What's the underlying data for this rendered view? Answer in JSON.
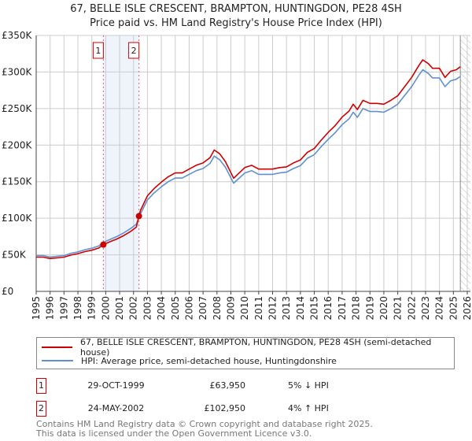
{
  "title": "67, BELLE ISLE CRESCENT, BRAMPTON, HUNTINGDON, PE28 4SH",
  "subtitle": "Price paid vs. HM Land Registry's House Price Index (HPI)",
  "colors": {
    "property": "#cc0000",
    "hpi": "#6090d0",
    "band": "#eef3fc",
    "grid": "#cccccc"
  },
  "chart_data": {
    "type": "line",
    "title": "67, BELLE ISLE CRESCENT, BRAMPTON, HUNTINGDON, PE28 4SH",
    "xlim": [
      1995,
      2026
    ],
    "ylim": [
      0,
      350000
    ],
    "x_ticks": [
      "1995",
      "1996",
      "1997",
      "1998",
      "1999",
      "2000",
      "2001",
      "2002",
      "2003",
      "2004",
      "2005",
      "2006",
      "2007",
      "2008",
      "2009",
      "2010",
      "2011",
      "2012",
      "2013",
      "2014",
      "2015",
      "2016",
      "2017",
      "2018",
      "2019",
      "2020",
      "2021",
      "2022",
      "2023",
      "2024",
      "2025",
      "2026"
    ],
    "y_ticks": [
      {
        "v": 0,
        "label": "£0"
      },
      {
        "v": 50000,
        "label": "£50K"
      },
      {
        "v": 100000,
        "label": "£100K"
      },
      {
        "v": 150000,
        "label": "£150K"
      },
      {
        "v": 200000,
        "label": "£200K"
      },
      {
        "v": 250000,
        "label": "£250K"
      },
      {
        "v": 300000,
        "label": "£300K"
      },
      {
        "v": 350000,
        "label": "£350K"
      }
    ],
    "grid": true,
    "forecast_start": 2025.5,
    "series": [
      {
        "name": "67, BELLE ISLE CRESCENT, BRAMPTON, HUNTINGDON, PE28 4SH (semi-detached house)",
        "color": "#cc0000",
        "points": [
          [
            1995,
            46800
          ],
          [
            1995.5,
            46800
          ],
          [
            1996,
            44900
          ],
          [
            1996.5,
            45800
          ],
          [
            1997,
            46800
          ],
          [
            1997.5,
            49700
          ],
          [
            1998,
            51600
          ],
          [
            1998.5,
            54400
          ],
          [
            1999,
            56300
          ],
          [
            1999.5,
            59200
          ],
          [
            1999.83,
            63950
          ],
          [
            2000.3,
            67800
          ],
          [
            2000.8,
            71600
          ],
          [
            2001.3,
            76400
          ],
          [
            2001.8,
            82100
          ],
          [
            2002.2,
            87900
          ],
          [
            2002.39,
            102950
          ],
          [
            2002.5,
            110800
          ],
          [
            2003,
            130600
          ],
          [
            2003.5,
            141100
          ],
          [
            2004,
            149400
          ],
          [
            2004.5,
            156800
          ],
          [
            2005,
            162000
          ],
          [
            2005.5,
            162000
          ],
          [
            2006,
            167200
          ],
          [
            2006.5,
            172400
          ],
          [
            2007,
            175600
          ],
          [
            2007.5,
            182900
          ],
          [
            2007.8,
            193300
          ],
          [
            2008.2,
            188100
          ],
          [
            2008.6,
            177700
          ],
          [
            2009.2,
            154700
          ],
          [
            2009.6,
            162000
          ],
          [
            2010,
            169300
          ],
          [
            2010.5,
            172400
          ],
          [
            2011,
            167200
          ],
          [
            2011.5,
            167200
          ],
          [
            2012,
            167200
          ],
          [
            2012.5,
            169300
          ],
          [
            2013,
            170300
          ],
          [
            2013.5,
            175600
          ],
          [
            2014,
            179700
          ],
          [
            2014.5,
            190200
          ],
          [
            2015,
            195400
          ],
          [
            2015.5,
            206900
          ],
          [
            2016,
            217400
          ],
          [
            2016.5,
            226800
          ],
          [
            2017,
            238300
          ],
          [
            2017.5,
            246600
          ],
          [
            2017.8,
            256000
          ],
          [
            2018.1,
            248700
          ],
          [
            2018.5,
            261300
          ],
          [
            2019,
            257100
          ],
          [
            2019.5,
            257100
          ],
          [
            2020,
            256000
          ],
          [
            2020.5,
            261300
          ],
          [
            2021,
            267500
          ],
          [
            2021.5,
            280100
          ],
          [
            2022,
            292600
          ],
          [
            2022.5,
            308300
          ],
          [
            2022.8,
            316600
          ],
          [
            2023.2,
            311400
          ],
          [
            2023.5,
            305100
          ],
          [
            2024,
            305100
          ],
          [
            2024.4,
            292600
          ],
          [
            2024.8,
            301000
          ],
          [
            2025.2,
            303100
          ],
          [
            2025.5,
            307200
          ]
        ]
      },
      {
        "name": "HPI: Average price, semi-detached house, Huntingdonshire",
        "color": "#6090d0",
        "points": [
          [
            1995,
            49000
          ],
          [
            1995.5,
            49000
          ],
          [
            1996,
            47000
          ],
          [
            1996.5,
            48000
          ],
          [
            1997,
            49000
          ],
          [
            1997.5,
            52000
          ],
          [
            1998,
            54000
          ],
          [
            1998.5,
            57000
          ],
          [
            1999,
            59000
          ],
          [
            1999.5,
            62000
          ],
          [
            1999.83,
            67000
          ],
          [
            2000.3,
            71000
          ],
          [
            2000.8,
            75000
          ],
          [
            2001.3,
            80000
          ],
          [
            2001.8,
            86000
          ],
          [
            2002.2,
            92000
          ],
          [
            2002.5,
            106000
          ],
          [
            2003,
            125000
          ],
          [
            2003.5,
            135000
          ],
          [
            2004,
            143000
          ],
          [
            2004.5,
            150000
          ],
          [
            2005,
            155000
          ],
          [
            2005.5,
            155000
          ],
          [
            2006,
            160000
          ],
          [
            2006.5,
            165000
          ],
          [
            2007,
            168000
          ],
          [
            2007.5,
            175000
          ],
          [
            2007.8,
            185000
          ],
          [
            2008.2,
            180000
          ],
          [
            2008.6,
            170000
          ],
          [
            2009.2,
            148000
          ],
          [
            2009.6,
            155000
          ],
          [
            2010,
            162000
          ],
          [
            2010.5,
            165000
          ],
          [
            2011,
            160000
          ],
          [
            2011.5,
            160000
          ],
          [
            2012,
            160000
          ],
          [
            2012.5,
            162000
          ],
          [
            2013,
            163000
          ],
          [
            2013.5,
            168000
          ],
          [
            2014,
            172000
          ],
          [
            2014.5,
            182000
          ],
          [
            2015,
            187000
          ],
          [
            2015.5,
            198000
          ],
          [
            2016,
            208000
          ],
          [
            2016.5,
            217000
          ],
          [
            2017,
            228000
          ],
          [
            2017.5,
            236000
          ],
          [
            2017.8,
            245000
          ],
          [
            2018.1,
            238000
          ],
          [
            2018.5,
            250000
          ],
          [
            2019,
            246000
          ],
          [
            2019.5,
            246000
          ],
          [
            2020,
            245000
          ],
          [
            2020.5,
            250000
          ],
          [
            2021,
            256000
          ],
          [
            2021.5,
            268000
          ],
          [
            2022,
            280000
          ],
          [
            2022.5,
            295000
          ],
          [
            2022.8,
            303000
          ],
          [
            2023.2,
            298000
          ],
          [
            2023.5,
            292000
          ],
          [
            2024,
            292000
          ],
          [
            2024.4,
            280000
          ],
          [
            2024.8,
            288000
          ],
          [
            2025.2,
            290000
          ],
          [
            2025.5,
            294000
          ]
        ]
      }
    ],
    "sales": [
      {
        "label": "1",
        "x": 1999.83,
        "y": 63950
      },
      {
        "label": "2",
        "x": 2002.39,
        "y": 102950
      }
    ]
  },
  "legend": {
    "property": "67, BELLE ISLE CRESCENT, BRAMPTON, HUNTINGDON, PE28 4SH (semi-detached house)",
    "hpi": "HPI: Average price, semi-detached house, Huntingdonshire"
  },
  "transactions": [
    {
      "num": "1",
      "date": "29-OCT-1999",
      "price": "£63,950",
      "hpi": "5% ↓ HPI"
    },
    {
      "num": "2",
      "date": "24-MAY-2002",
      "price": "£102,950",
      "hpi": "4% ↑ HPI"
    }
  ],
  "footer": {
    "line1": "Contains HM Land Registry data © Crown copyright and database right 2025.",
    "line2": "This data is licensed under the Open Government Licence v3.0."
  }
}
